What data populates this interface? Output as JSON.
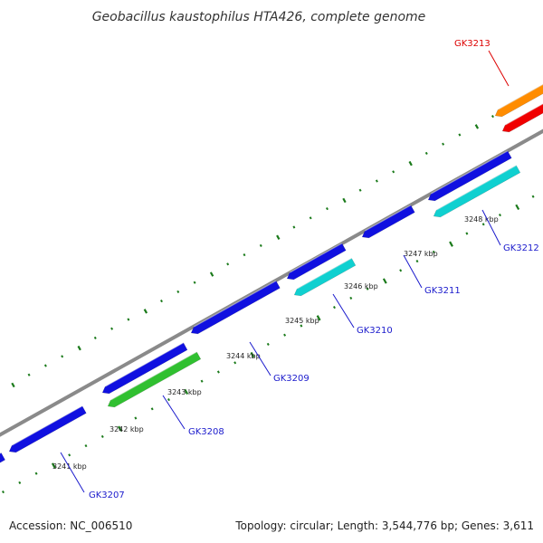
{
  "title": "Geobacillus kaustophilus HTA426, complete genome",
  "footer": {
    "accession": "Accession: NC_006510",
    "summary": "Topology: circular; Length: 3,544,776 bp; Genes: 3,611"
  },
  "colors": {
    "backbone": "#8a8a8a",
    "tick": "#1a7a1a",
    "gene_blue": "#1010e0",
    "gene_cyan": "#10d0d0",
    "gene_green": "#30c030",
    "gene_orange": "#ff8c00",
    "gene_red": "#f00000",
    "label_blue": "#1a1acc",
    "label_red": "#dd0000"
  },
  "ticks": [
    {
      "label": "3241 kbp"
    },
    {
      "label": "3242 kbp"
    },
    {
      "label": "3243 kbp"
    },
    {
      "label": "3244 kbp"
    },
    {
      "label": "3245 kbp"
    },
    {
      "label": "3246 kbp"
    },
    {
      "label": "3247 kbp"
    },
    {
      "label": "3248 kbp"
    }
  ],
  "gene_labels": [
    {
      "text": "GK3207",
      "color": "label_blue"
    },
    {
      "text": "GK3208",
      "color": "label_blue"
    },
    {
      "text": "GK3209",
      "color": "label_blue"
    },
    {
      "text": "GK3210",
      "color": "label_blue"
    },
    {
      "text": "GK3211",
      "color": "label_blue"
    },
    {
      "text": "GK3212",
      "color": "label_blue"
    },
    {
      "text": "GK3213",
      "color": "label_red"
    }
  ]
}
